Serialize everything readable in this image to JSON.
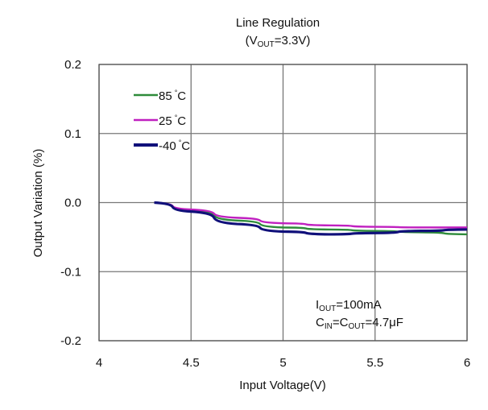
{
  "chart_data": {
    "type": "line",
    "title": "Line Regulation",
    "subtitle": "(V_OUT=3.3V)",
    "subtitle_parts": {
      "pre": "(V",
      "sub": "OUT",
      "post": "=3.3V)"
    },
    "xlabel": "Input Voltage(V)",
    "ylabel": "Output Variation (%)",
    "xlim": [
      4,
      6
    ],
    "ylim": [
      -0.2,
      0.2
    ],
    "xticks": [
      "4",
      "4.5",
      "5",
      "5.5",
      "6"
    ],
    "yticks": [
      "0.2",
      "0.1",
      "0.0",
      "-0.1",
      "-0.2"
    ],
    "grid": true,
    "legend_placement": "top-left",
    "x": [
      4.3,
      4.5,
      4.75,
      5,
      5.25,
      5.5,
      5.75,
      6
    ],
    "series": [
      {
        "name": "85°C",
        "legend": "85",
        "color": "#2e8b3a",
        "values": [
          0,
          -0.011,
          -0.026,
          -0.036,
          -0.039,
          -0.041,
          -0.043,
          -0.046
        ]
      },
      {
        "name": "25°C",
        "legend": "25",
        "color": "#c020c0",
        "values": [
          0,
          -0.01,
          -0.022,
          -0.03,
          -0.033,
          -0.035,
          -0.036,
          -0.036
        ]
      },
      {
        "name": "-40°C",
        "legend": "-40",
        "color": "#10107a",
        "values": [
          0,
          -0.013,
          -0.031,
          -0.042,
          -0.046,
          -0.044,
          -0.041,
          -0.039
        ]
      }
    ],
    "annotation": [
      {
        "pre": "I",
        "sub": "OUT",
        "post": "=100mA"
      },
      {
        "pre": "C",
        "sub": "IN",
        "mid": "=C",
        "sub2": "OUT",
        "post": "=4.7μF"
      }
    ]
  }
}
